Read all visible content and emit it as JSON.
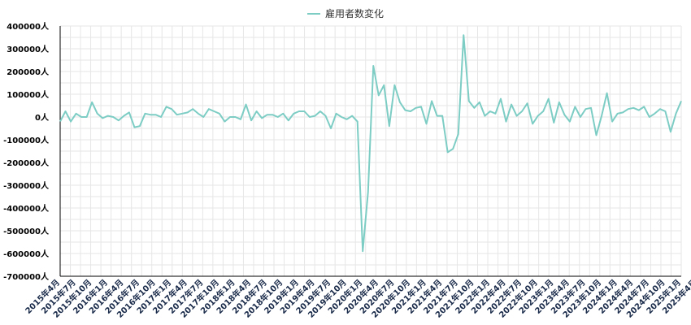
{
  "chart_data": {
    "type": "line",
    "title": "",
    "xlabel": "",
    "ylabel": "",
    "legend_position": "top-center",
    "grid": true,
    "ylim": [
      -700000,
      400000
    ],
    "y_ticks": [
      400000,
      300000,
      200000,
      100000,
      0,
      -100000,
      -200000,
      -300000,
      -400000,
      -500000,
      -600000,
      -700000
    ],
    "y_tick_labels": [
      "400000人",
      "300000人",
      "200000人",
      "100000人",
      "0人",
      "-100000人",
      "-200000人",
      "-300000人",
      "-400000人",
      "-500000人",
      "-600000人",
      "-700000人"
    ],
    "x_tick_labels": [
      "2015年4月",
      "2015年7月",
      "2015年10月",
      "2016年1月",
      "2016年4月",
      "2016年7月",
      "2016年10月",
      "2017年1月",
      "2017年4月",
      "2017年7月",
      "2017年10月",
      "2018年1月",
      "2018年4月",
      "2018年7月",
      "2018年10月",
      "2019年1月",
      "2019年4月",
      "2019年7月",
      "2019年10月",
      "2020年1月",
      "2020年4月",
      "2020年7月",
      "2020年10月",
      "2021年1月",
      "2021年4月",
      "2021年7月",
      "2021年10月",
      "2022年1月",
      "2022年4月",
      "2022年7月",
      "2022年10月",
      "2023年1月",
      "2023年4月",
      "2023年7月",
      "2023年10月",
      "2024年1月",
      "2024年4月",
      "2024年7月",
      "2024年10月",
      "2025年1月",
      "2025年4月"
    ],
    "series": [
      {
        "name": "雇用者数変化",
        "color": "#7dcdc5",
        "values": [
          -20000,
          25000,
          -20000,
          15000,
          0,
          0,
          65000,
          15000,
          -5000,
          5000,
          0,
          -15000,
          5000,
          20000,
          -45000,
          -40000,
          15000,
          10000,
          10000,
          0,
          45000,
          35000,
          10000,
          15000,
          20000,
          35000,
          15000,
          0,
          35000,
          25000,
          15000,
          -20000,
          0,
          0,
          -10000,
          55000,
          -15000,
          25000,
          -5000,
          10000,
          10000,
          0,
          15000,
          -15000,
          15000,
          25000,
          25000,
          0,
          5000,
          25000,
          5000,
          -50000,
          15000,
          0,
          -10000,
          5000,
          -20000,
          -590000,
          -330000,
          225000,
          95000,
          140000,
          -40000,
          140000,
          65000,
          30000,
          25000,
          40000,
          45000,
          -30000,
          70000,
          5000,
          5000,
          -155000,
          -140000,
          -75000,
          360000,
          70000,
          40000,
          65000,
          5000,
          25000,
          15000,
          80000,
          -20000,
          55000,
          5000,
          25000,
          60000,
          -30000,
          5000,
          25000,
          80000,
          -25000,
          65000,
          10000,
          -20000,
          45000,
          0,
          35000,
          40000,
          -80000,
          5000,
          105000,
          -20000,
          15000,
          20000,
          35000,
          40000,
          30000,
          45000,
          0,
          15000,
          35000,
          25000,
          -65000,
          15000,
          70000
        ]
      }
    ]
  }
}
